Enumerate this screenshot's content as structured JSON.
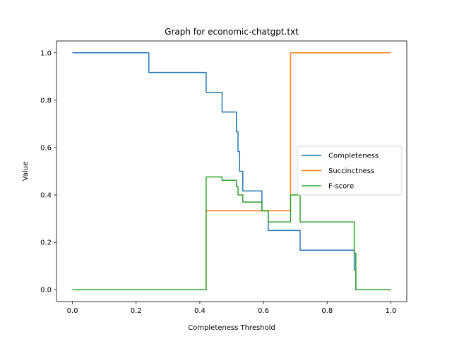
{
  "chart_data": {
    "type": "line",
    "title": "Graph for economic-chatgpt.txt",
    "xlabel": "Completeness Threshold",
    "ylabel": "Value",
    "xlim": [
      -0.05,
      1.05
    ],
    "ylim": [
      -0.05,
      1.05
    ],
    "xticks": [
      0.0,
      0.2,
      0.4,
      0.6,
      0.8,
      1.0
    ],
    "yticks": [
      0.0,
      0.2,
      0.4,
      0.6,
      0.8,
      1.0
    ],
    "xtick_labels": [
      "0.0",
      "0.2",
      "0.4",
      "0.6",
      "0.8",
      "1.0"
    ],
    "ytick_labels": [
      "0.0",
      "0.2",
      "0.4",
      "0.6",
      "0.8",
      "1.0"
    ],
    "grid": false,
    "legend_position": "center-right",
    "series": [
      {
        "name": "Completeness",
        "color": "#1f77b4",
        "points": [
          [
            0.0,
            1.0
          ],
          [
            0.24,
            1.0
          ],
          [
            0.24,
            0.917
          ],
          [
            0.42,
            0.917
          ],
          [
            0.42,
            0.833
          ],
          [
            0.47,
            0.833
          ],
          [
            0.47,
            0.75
          ],
          [
            0.515,
            0.75
          ],
          [
            0.515,
            0.667
          ],
          [
            0.52,
            0.667
          ],
          [
            0.52,
            0.583
          ],
          [
            0.525,
            0.583
          ],
          [
            0.525,
            0.5
          ],
          [
            0.535,
            0.5
          ],
          [
            0.535,
            0.417
          ],
          [
            0.595,
            0.417
          ],
          [
            0.595,
            0.333
          ],
          [
            0.615,
            0.333
          ],
          [
            0.615,
            0.25
          ],
          [
            0.715,
            0.25
          ],
          [
            0.715,
            0.167
          ],
          [
            0.885,
            0.167
          ],
          [
            0.885,
            0.083
          ],
          [
            0.89,
            0.083
          ],
          [
            0.89,
            0.0
          ],
          [
            1.0,
            0.0
          ]
        ]
      },
      {
        "name": "Succinctness",
        "color": "#ff7f0e",
        "points": [
          [
            0.0,
            0.0
          ],
          [
            0.42,
            0.0
          ],
          [
            0.42,
            0.333
          ],
          [
            0.685,
            0.333
          ],
          [
            0.685,
            1.0
          ],
          [
            1.0,
            1.0
          ]
        ]
      },
      {
        "name": "F-score",
        "color": "#2ca02c",
        "points": [
          [
            0.0,
            0.0
          ],
          [
            0.42,
            0.0
          ],
          [
            0.42,
            0.476
          ],
          [
            0.47,
            0.476
          ],
          [
            0.47,
            0.462
          ],
          [
            0.515,
            0.462
          ],
          [
            0.515,
            0.435
          ],
          [
            0.52,
            0.435
          ],
          [
            0.52,
            0.4
          ],
          [
            0.535,
            0.4
          ],
          [
            0.535,
            0.37
          ],
          [
            0.595,
            0.37
          ],
          [
            0.595,
            0.333
          ],
          [
            0.615,
            0.333
          ],
          [
            0.615,
            0.286
          ],
          [
            0.685,
            0.286
          ],
          [
            0.685,
            0.4
          ],
          [
            0.715,
            0.4
          ],
          [
            0.715,
            0.286
          ],
          [
            0.885,
            0.286
          ],
          [
            0.885,
            0.154
          ],
          [
            0.89,
            0.154
          ],
          [
            0.89,
            0.0
          ],
          [
            1.0,
            0.0
          ]
        ]
      }
    ]
  }
}
